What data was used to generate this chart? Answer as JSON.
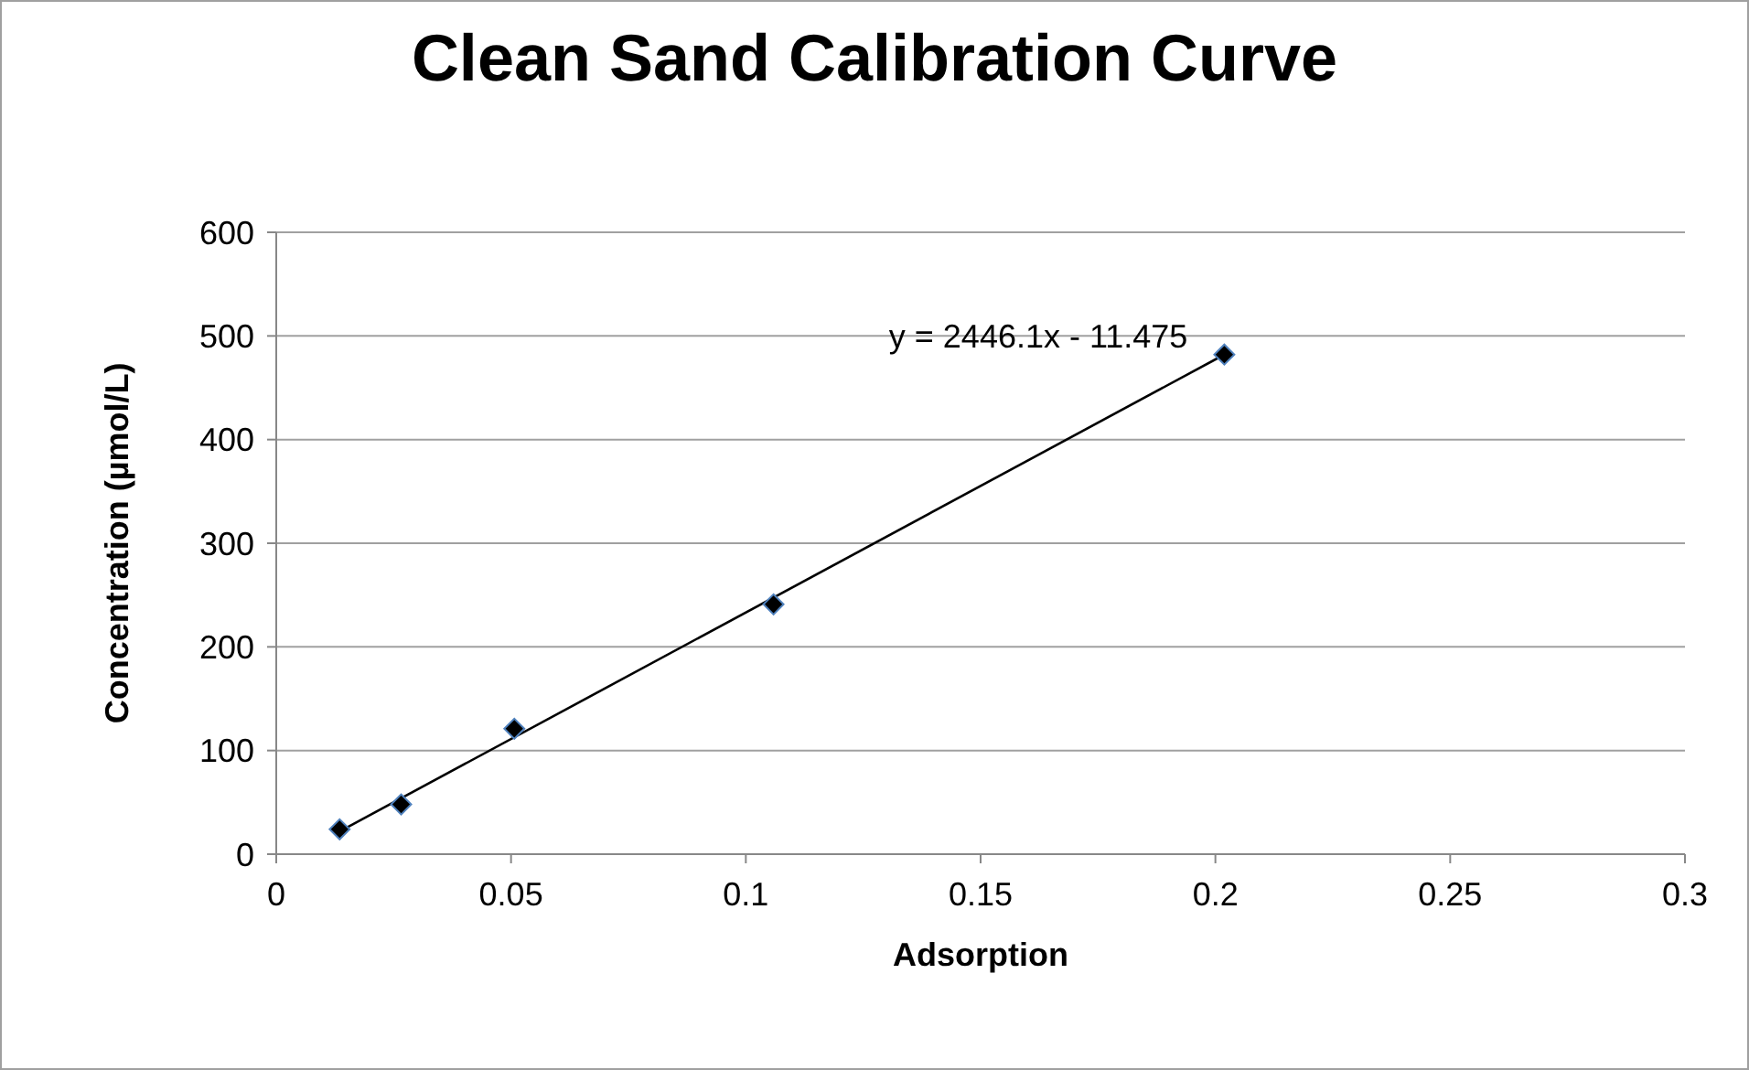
{
  "chart_data": {
    "type": "scatter",
    "title": "Clean Sand Calibration Curve",
    "xlabel": "Adsorption",
    "ylabel": "Concentration (µmol/L)",
    "xlim": [
      0,
      0.3
    ],
    "xticks": [
      0,
      0.05,
      0.1,
      0.15,
      0.2,
      0.25,
      0.3
    ],
    "ylim": [
      0,
      600
    ],
    "yticks": [
      0,
      100,
      200,
      300,
      400,
      500,
      600
    ],
    "grid": "y",
    "series": [
      {
        "marker": "diamond",
        "color": "#000000",
        "x": [
          0.0135,
          0.0266,
          0.0507,
          0.1059,
          0.2019
        ],
        "values": [
          24,
          48,
          121,
          241,
          482
        ]
      },
      {
        "type": "line",
        "marker": "none",
        "color": "#000000",
        "x": [
          0.0135,
          0.2019
        ],
        "values": [
          22,
          482
        ]
      }
    ],
    "annotations": [
      "y = 2446.1x - 11.475"
    ]
  }
}
